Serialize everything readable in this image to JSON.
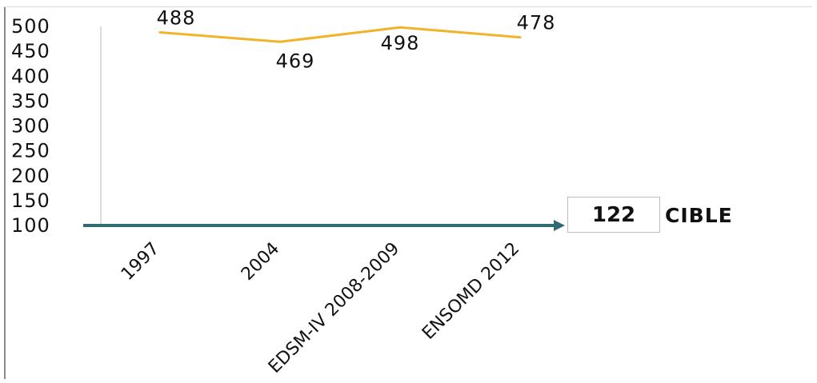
{
  "chart_data": {
    "type": "line",
    "categories": [
      "1997",
      "2004",
      "EDSM-IV 2008-2009",
      "ENSOMD  2012"
    ],
    "series": [
      {
        "values": [
          488,
          469,
          498,
          478
        ],
        "color": "#f0b429"
      }
    ],
    "data_labels": [
      "488",
      "469",
      "498",
      "478"
    ],
    "y_ticks": [
      "500",
      "450",
      "400",
      "350",
      "300",
      "250",
      "200",
      "150",
      "100"
    ],
    "ylim": [
      100,
      500
    ],
    "grid": false,
    "target": {
      "value": "122",
      "label": "CIBLE",
      "arrow_color": "#2f6b72"
    }
  }
}
